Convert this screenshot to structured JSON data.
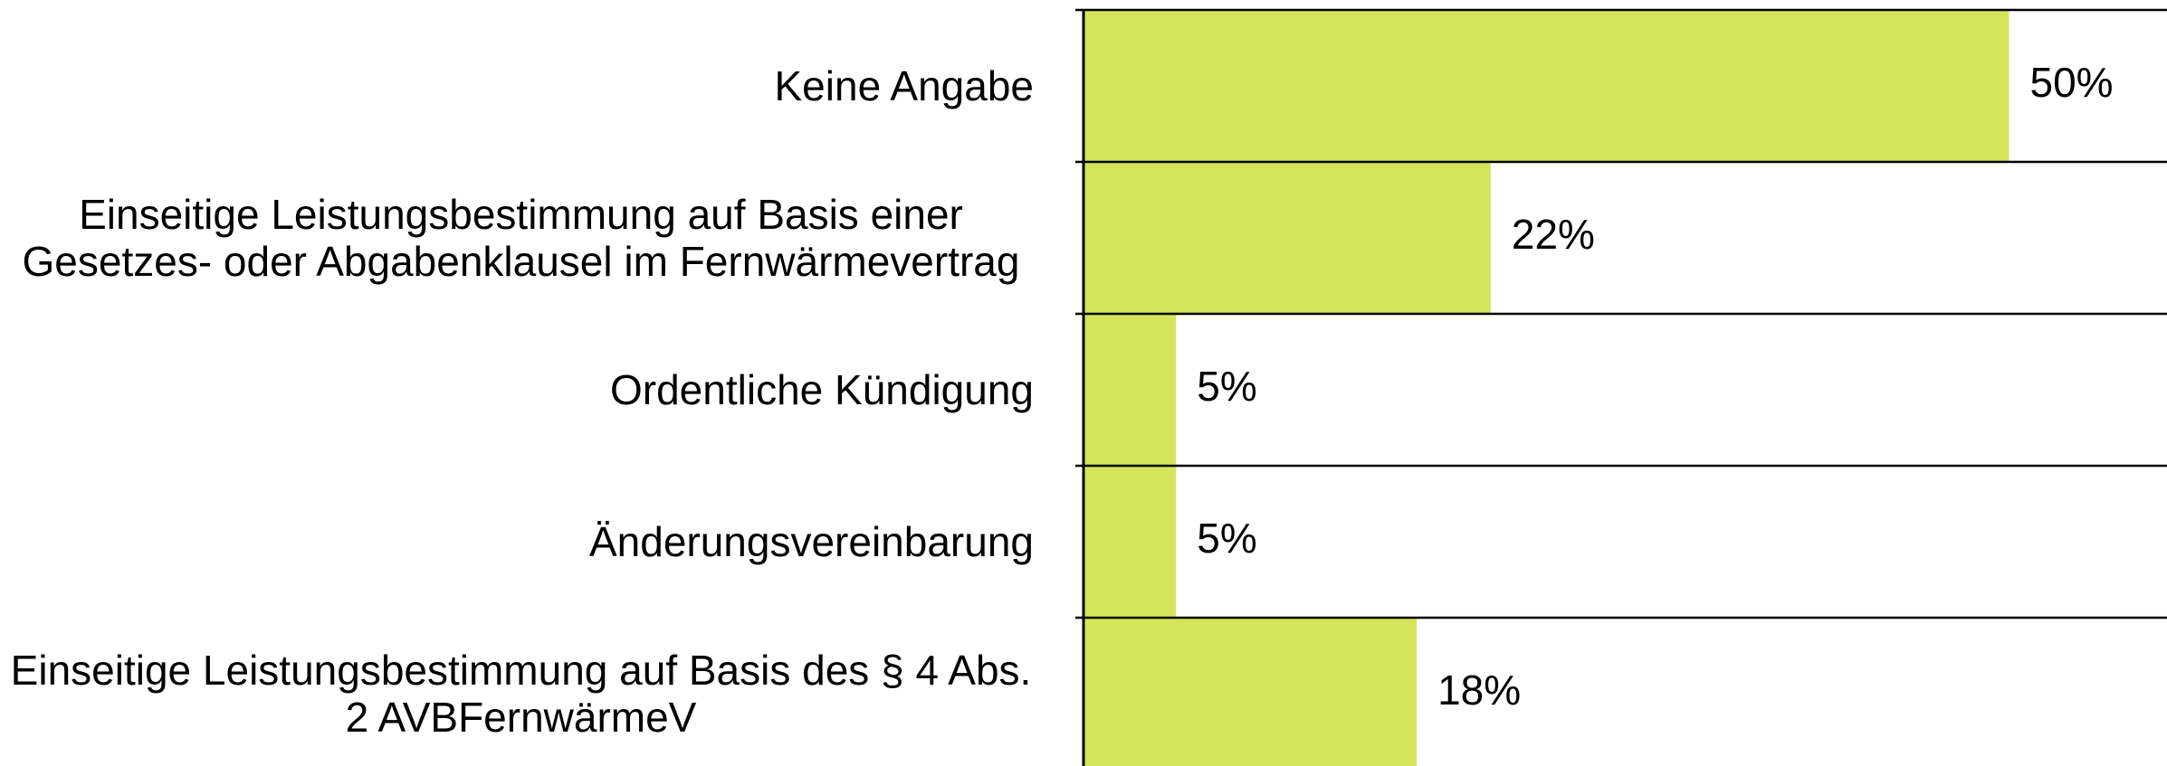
{
  "chart_data": {
    "type": "bar",
    "orientation": "horizontal",
    "categories": [
      "Keine Angabe",
      "Einseitige Leistungsbestimmung auf Basis einer Gesetzes- oder Abgabenklausel im Fernwärmevertrag",
      "Ordentliche Kündigung",
      "Änderungsvereinbarung",
      "Einseitige Leistungsbestimmung auf Basis des § 4 Abs. 2 AVBFernwärmeV"
    ],
    "values": [
      50,
      22,
      5,
      5,
      18
    ],
    "value_labels": [
      "50%",
      "22%",
      "5%",
      "5%",
      "18%"
    ],
    "color": "#d4e55b"
  }
}
